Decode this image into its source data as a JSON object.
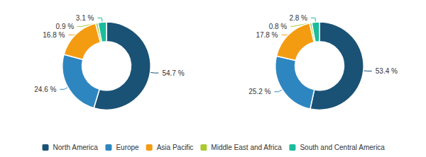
{
  "chart_data": [
    {
      "type": "pie",
      "categories": [
        "North America",
        "Europe",
        "Asia Pacific",
        "Middle East and Africa",
        "South and Central America"
      ],
      "values": [
        54.7,
        24.6,
        16.8,
        0.9,
        3.1
      ],
      "value_labels": [
        "54.7 %",
        "24.6 %",
        "16.8 %",
        "0.9 %",
        "3.1 %"
      ],
      "colors": [
        "#1a5276",
        "#2e86c1",
        "#f39c12",
        "#a9c935",
        "#1abc9c"
      ],
      "data_labels": true,
      "legend": "bottom"
    },
    {
      "type": "pie",
      "categories": [
        "North America",
        "Europe",
        "Asia Pacific",
        "Middle East and Africa",
        "South and Central America"
      ],
      "values": [
        53.4,
        25.2,
        17.8,
        0.8,
        2.8
      ],
      "value_labels": [
        "53.4 %",
        "25.2 %",
        "17.8 %",
        "0.8 %",
        "2.8 %"
      ],
      "colors": [
        "#1a5276",
        "#2e86c1",
        "#f39c12",
        "#a9c935",
        "#1abc9c"
      ],
      "data_labels": true,
      "legend": "bottom"
    }
  ]
}
